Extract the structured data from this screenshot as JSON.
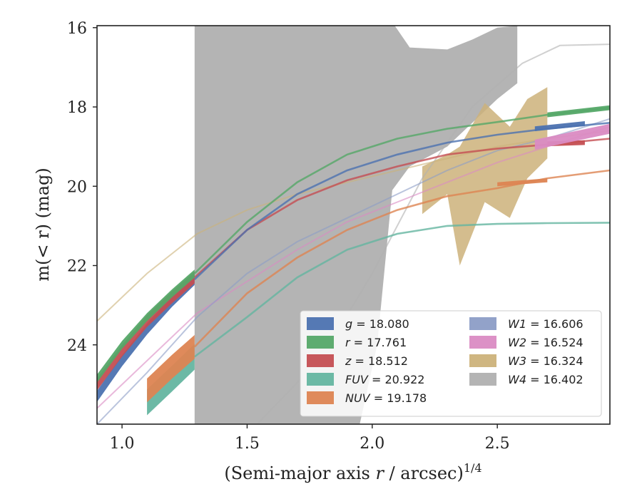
{
  "chart_data": {
    "type": "area",
    "xlabel": "(Semi-major axis",
    "xlabel_var": "r",
    "xlabel_unit": "/ arcsec)",
    "xlabel_exp": "1/4",
    "ylabel": "m(< r) (mag)",
    "xlim": [
      0.9,
      2.95
    ],
    "ylim": [
      26.0,
      15.95
    ],
    "y_inverted": true,
    "xticks": [
      "1.0",
      "1.5",
      "2.0",
      "2.5"
    ],
    "xtick_values": [
      1.0,
      1.5,
      2.0,
      2.5
    ],
    "yticks": [
      "16",
      "18",
      "20",
      "22",
      "24"
    ],
    "ytick_values": [
      16,
      18,
      20,
      22,
      24
    ],
    "grid": false,
    "legend_placement": "lower-right",
    "series": [
      {
        "name": "g = 18.080",
        "label_var": "g",
        "label_val": "18.080",
        "color": "#4c72b0",
        "band": {
          "x": [
            0.9,
            1.0,
            1.1,
            1.2,
            1.29
          ],
          "y": [
            25.3,
            24.4,
            23.6,
            22.9,
            22.35
          ],
          "w": 0.28
        },
        "line": {
          "x": [
            1.29,
            1.5,
            1.7,
            1.9,
            2.1,
            2.3,
            2.5,
            2.7,
            2.95
          ],
          "y": [
            22.35,
            21.1,
            20.2,
            19.6,
            19.2,
            18.9,
            18.7,
            18.55,
            18.4
          ]
        },
        "band2": {
          "x": [
            2.65,
            2.85
          ],
          "y": [
            18.55,
            18.42
          ],
          "w": 0.12
        }
      },
      {
        "name": "r = 17.761",
        "label_var": "r",
        "label_val": "17.761",
        "color": "#55a868",
        "band": {
          "x": [
            0.9,
            1.0,
            1.1,
            1.2,
            1.29
          ],
          "y": [
            24.85,
            24.0,
            23.3,
            22.7,
            22.2
          ],
          "w": 0.2
        },
        "line": {
          "x": [
            1.29,
            1.5,
            1.7,
            1.9,
            2.1,
            2.3,
            2.5,
            2.7,
            2.95
          ],
          "y": [
            22.2,
            20.9,
            19.9,
            19.2,
            18.8,
            18.55,
            18.38,
            18.2,
            18.02
          ]
        },
        "band2": {
          "x": [
            2.7,
            2.95
          ],
          "y": [
            18.2,
            18.02
          ],
          "w": 0.12
        }
      },
      {
        "name": "z = 18.512",
        "label_var": "z",
        "label_val": "18.512",
        "color": "#c44e52",
        "band": {
          "x": [
            0.9,
            1.0,
            1.1,
            1.2,
            1.29
          ],
          "y": [
            25.0,
            24.15,
            23.4,
            22.8,
            22.3
          ],
          "w": 0.3
        },
        "line": {
          "x": [
            1.29,
            1.5,
            1.7,
            1.9,
            2.1,
            2.3,
            2.5,
            2.7,
            2.95
          ],
          "y": [
            22.3,
            21.1,
            20.35,
            19.85,
            19.5,
            19.2,
            19.05,
            18.95,
            18.8
          ]
        },
        "band2": {
          "x": [
            2.7,
            2.85
          ],
          "y": [
            18.93,
            18.9
          ],
          "w": 0.12
        }
      },
      {
        "name": "FUV = 20.922",
        "label_var": "FUV",
        "label_val": "20.922",
        "color": "#64b5a0",
        "band": {
          "x": [
            1.1,
            1.2,
            1.29
          ],
          "y": [
            25.45,
            24.85,
            24.3
          ],
          "w": 0.65
        },
        "line": {
          "x": [
            1.29,
            1.5,
            1.7,
            1.9,
            2.1,
            2.3,
            2.5,
            2.7,
            2.95
          ],
          "y": [
            24.3,
            23.3,
            22.3,
            21.6,
            21.2,
            21.0,
            20.95,
            20.93,
            20.92
          ]
        }
      },
      {
        "name": "NUV = 19.178",
        "label_var": "NUV",
        "label_val": "19.178",
        "color": "#dd8452",
        "band": {
          "x": [
            1.1,
            1.2,
            1.29
          ],
          "y": [
            25.15,
            24.55,
            24.05
          ],
          "w": 0.6
        },
        "line": {
          "x": [
            1.29,
            1.5,
            1.7,
            1.9,
            2.1,
            2.3,
            2.5,
            2.7,
            2.95
          ],
          "y": [
            24.05,
            22.7,
            21.8,
            21.1,
            20.6,
            20.25,
            20.05,
            19.8,
            19.6
          ]
        },
        "band2": {
          "x": [
            2.5,
            2.7
          ],
          "y": [
            19.95,
            19.85
          ],
          "w": 0.1
        }
      },
      {
        "name": "W1 = 16.606",
        "label_var": "W1",
        "label_val": "16.606",
        "color": "#8c9dc6",
        "line": {
          "x": [
            0.9,
            1.1,
            1.3,
            1.5,
            1.7,
            1.9,
            2.1,
            2.3,
            2.5,
            2.7,
            2.95
          ],
          "y": [
            26.0,
            24.7,
            23.3,
            22.2,
            21.4,
            20.8,
            20.2,
            19.6,
            19.1,
            18.8,
            18.3
          ]
        }
      },
      {
        "name": "W2 = 16.524",
        "label_var": "W2",
        "label_val": "16.524",
        "color": "#da8bc3",
        "line": {
          "x": [
            0.9,
            1.1,
            1.3,
            1.5,
            1.7,
            1.9,
            2.1,
            2.3,
            2.5,
            2.7,
            2.95
          ],
          "y": [
            25.6,
            24.4,
            23.2,
            22.4,
            21.6,
            20.9,
            20.4,
            19.9,
            19.4,
            19.0,
            18.5
          ]
        },
        "band2": {
          "x": [
            2.65,
            2.95
          ],
          "y": [
            18.95,
            18.55
          ],
          "w": 0.25
        }
      },
      {
        "name": "W3 = 16.324",
        "label_var": "W3",
        "label_val": "16.324",
        "color": "#ccb27a",
        "line": {
          "x": [
            0.9,
            1.1,
            1.3,
            1.5,
            1.7,
            1.9,
            2.1,
            2.3,
            2.5,
            2.7,
            2.95
          ],
          "y": [
            23.4,
            22.2,
            21.2,
            20.6,
            20.2,
            19.9,
            19.6,
            19.3,
            19.0,
            18.8,
            18.6
          ]
        },
        "fill": {
          "x": [
            2.2,
            2.3,
            2.35,
            2.45,
            2.55,
            2.62,
            2.7,
            2.7,
            2.62,
            2.55,
            2.45,
            2.35,
            2.3,
            2.2
          ],
          "upper": [
            20.7,
            20.2,
            22.0,
            20.4,
            20.8,
            19.8,
            19.3,
            17.5,
            17.8,
            18.5,
            17.9,
            19.0,
            19.2,
            19.5
          ]
        }
      },
      {
        "name": "W4 = 16.402",
        "label_var": "W4",
        "label_val": "16.402",
        "color": "#b0b0b0",
        "line": {
          "x": [
            1.54,
            1.8,
            2.0,
            2.2,
            2.4,
            2.6,
            2.75,
            2.95
          ],
          "y": [
            26.0,
            24.3,
            22.2,
            19.8,
            18.0,
            16.9,
            16.45,
            16.42
          ]
        },
        "fill_poly": {
          "x": [
            1.29,
            1.29,
            1.5,
            2.09,
            2.15,
            2.3,
            2.4,
            2.5,
            2.58,
            2.58,
            2.5,
            2.3,
            2.15,
            2.08,
            2.02,
            1.95,
            1.75,
            1.5,
            1.29
          ],
          "y": [
            26.0,
            15.95,
            15.95,
            15.95,
            16.5,
            16.55,
            16.3,
            16.0,
            15.95,
            17.4,
            17.8,
            19.0,
            19.5,
            20.1,
            24.0,
            26.0,
            26.0,
            26.0,
            26.0
          ]
        }
      }
    ]
  }
}
